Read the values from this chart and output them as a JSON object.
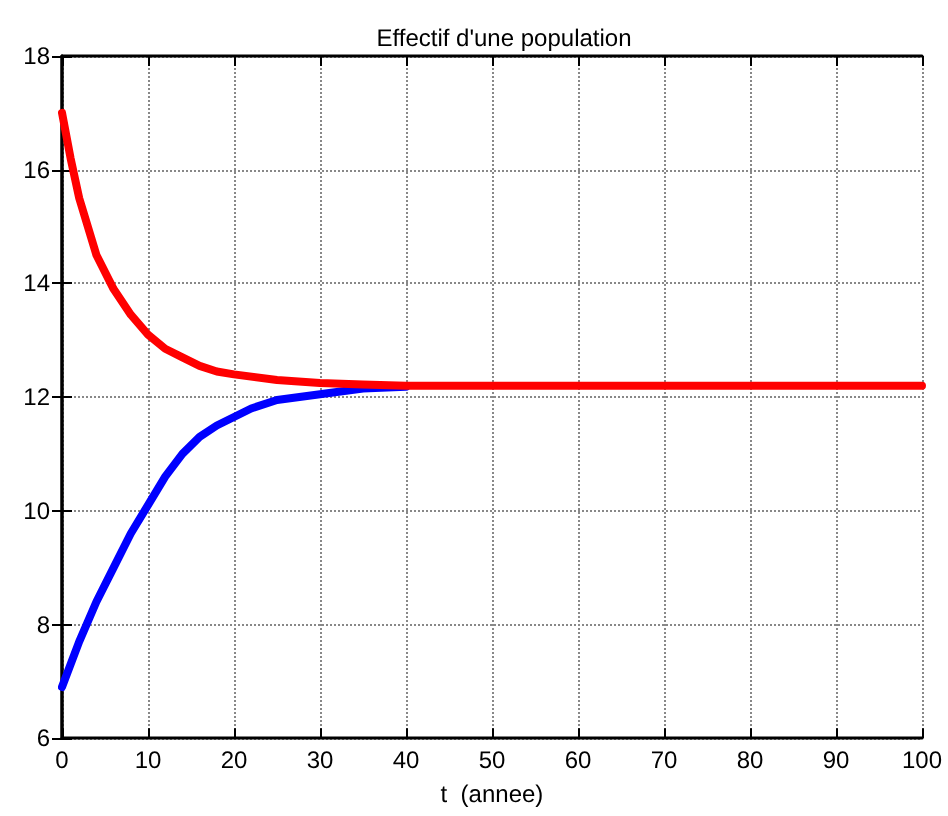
{
  "chart_data": {
    "type": "line",
    "title": "Effectif d'une population",
    "xlabel": "t  (annee)",
    "xlim": [
      0,
      100
    ],
    "xticks": [
      0,
      10,
      20,
      30,
      40,
      50,
      60,
      70,
      80,
      90,
      100
    ],
    "ylim": [
      6,
      18
    ],
    "yticks": [
      6,
      8,
      10,
      12,
      14,
      16,
      18
    ],
    "grid": true,
    "marker": "none",
    "line_style": "solid",
    "series": [
      {
        "color": "#0000ff",
        "x": [
          0,
          2,
          4,
          6,
          8,
          10,
          12,
          14,
          16,
          18,
          20,
          22,
          25,
          30,
          35,
          40
        ],
        "values": [
          6.9,
          7.7,
          8.4,
          9.0,
          9.6,
          10.1,
          10.6,
          11.0,
          11.3,
          11.5,
          11.65,
          11.8,
          11.95,
          12.05,
          12.15,
          12.18
        ]
      },
      {
        "color": "#ff0000",
        "x": [
          0,
          1,
          2,
          4,
          6,
          8,
          10,
          12,
          14,
          16,
          18,
          20,
          25,
          30,
          35,
          40,
          50,
          100
        ],
        "values": [
          17,
          16.2,
          15.5,
          14.5,
          13.9,
          13.45,
          13.1,
          12.85,
          12.7,
          12.55,
          12.45,
          12.4,
          12.3,
          12.25,
          12.22,
          12.2,
          12.2,
          12.2
        ]
      }
    ]
  }
}
